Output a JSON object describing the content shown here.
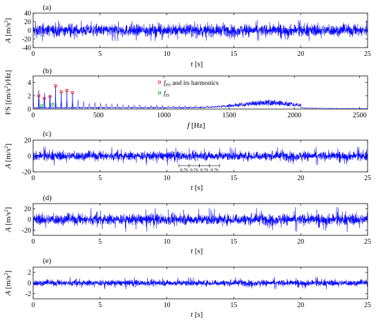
{
  "chart_data": [
    {
      "panel": "(a)",
      "type": "line",
      "xlabel": {
        "var": "t",
        "unit": "[s]"
      },
      "ylabel": {
        "var": "A",
        "unit": "[m/s",
        "sup": "2",
        "close": "]"
      },
      "xlim": [
        0,
        25
      ],
      "ylim": [
        -40,
        40
      ],
      "xticks": [
        "0",
        "5",
        "10",
        "15",
        "20",
        "25"
      ],
      "xtick_values": [
        0,
        5,
        10,
        15,
        20,
        25
      ],
      "yticks": [
        "40",
        "20",
        "0",
        "-20",
        "-40"
      ],
      "ytick_values": [
        40,
        20,
        0,
        -20,
        -40
      ],
      "signal": {
        "color": "#0000ff",
        "typical_amplitude": 12,
        "peak_amplitude": 25
      }
    },
    {
      "panel": "(b)",
      "type": "line",
      "xlabel": {
        "var": "f",
        "unit": "[Hz]"
      },
      "ylabel": {
        "text": "FS [(m/s",
        "sup": "2",
        "close": ")/Hz]"
      },
      "xlim": [
        0,
        2560
      ],
      "ylim": [
        0,
        5
      ],
      "xticks": [
        "0",
        "500",
        "1000",
        "1500",
        "2000",
        "2500"
      ],
      "xtick_values": [
        0,
        500,
        1000,
        1500,
        2000,
        2500
      ],
      "yticks": [
        "4",
        "2",
        "0"
      ],
      "ytick_values": [
        4,
        2,
        0
      ],
      "legend": {
        "position": "top-center",
        "entries": [
          {
            "marker": "circle",
            "color": "#ff0000",
            "prefix": "f",
            "sub": "PS",
            "suffix": " and its harmonics"
          },
          {
            "marker": "square",
            "color": "#00c000",
            "prefix": "f",
            "sub": "IS",
            "suffix": ""
          }
        ]
      },
      "spectrum": {
        "color": "#0000ff",
        "harmonic_spacing_hz": 43,
        "fps_harmonics_hz": [
          43,
          86,
          129,
          172,
          215,
          258,
          301
        ],
        "fps_harmonic_peaks": [
          2.0,
          1.6,
          1.9,
          3.5,
          2.6,
          2.8,
          2.5
        ],
        "fis_hz": [
          65,
          150
        ],
        "fis_peaks": [
          0.5,
          0.7
        ],
        "broadband_hump_center_hz": 1800,
        "broadband_hump_level": 0.9
      }
    },
    {
      "panel": "(c)",
      "type": "line",
      "xlabel": {
        "var": "t",
        "unit": "[s]"
      },
      "ylabel": {
        "var": "A",
        "unit": "[m/s",
        "sup": "2",
        "close": "]"
      },
      "xlim": [
        0,
        25
      ],
      "ylim": [
        -20,
        20
      ],
      "xticks": [
        "0",
        "5",
        "10",
        "15",
        "20",
        "25"
      ],
      "xtick_values": [
        0,
        5,
        10,
        15,
        20,
        25
      ],
      "yticks": [
        "20",
        "0",
        "-20"
      ],
      "ytick_values": [
        20,
        0,
        -20
      ],
      "signal": {
        "color": "#0000ff",
        "typical_amplitude": 5,
        "peak_amplitude": 12
      },
      "period_markers": {
        "start": 10.9,
        "interval": 0.76,
        "labels": [
          "0.76",
          "0.76",
          "0.76",
          "0.76"
        ]
      }
    },
    {
      "panel": "(d)",
      "type": "line",
      "xlabel": {
        "var": "t",
        "unit": "[s]"
      },
      "ylabel": {
        "var": "A",
        "unit": "[m/s",
        "sup": "2",
        "close": "]"
      },
      "xlim": [
        0,
        25
      ],
      "ylim": [
        -30,
        30
      ],
      "xticks": [
        "0",
        "5",
        "10",
        "15",
        "20",
        "25"
      ],
      "xtick_values": [
        0,
        5,
        10,
        15,
        20,
        25
      ],
      "yticks": [
        "20",
        "0",
        "-20"
      ],
      "ytick_values": [
        20,
        0,
        -20
      ],
      "signal": {
        "color": "#0000ff",
        "typical_amplitude": 9,
        "peak_amplitude": 24
      }
    },
    {
      "panel": "(e)",
      "type": "line",
      "xlabel": {
        "var": "t",
        "unit": "[s]"
      },
      "ylabel": {
        "var": "A",
        "unit": "[m/s",
        "sup": "2",
        "close": "]"
      },
      "xlim": [
        0,
        25
      ],
      "ylim": [
        -3,
        3
      ],
      "xticks": [
        "0",
        "5",
        "10",
        "15",
        "20",
        "25"
      ],
      "xtick_values": [
        0,
        5,
        10,
        15,
        20,
        25
      ],
      "yticks": [
        "2",
        "0",
        "-2"
      ],
      "ytick_values": [
        2,
        0,
        -2
      ],
      "signal": {
        "color": "#0000ff",
        "typical_amplitude": 0.5,
        "peak_amplitude": 1.2
      }
    }
  ]
}
